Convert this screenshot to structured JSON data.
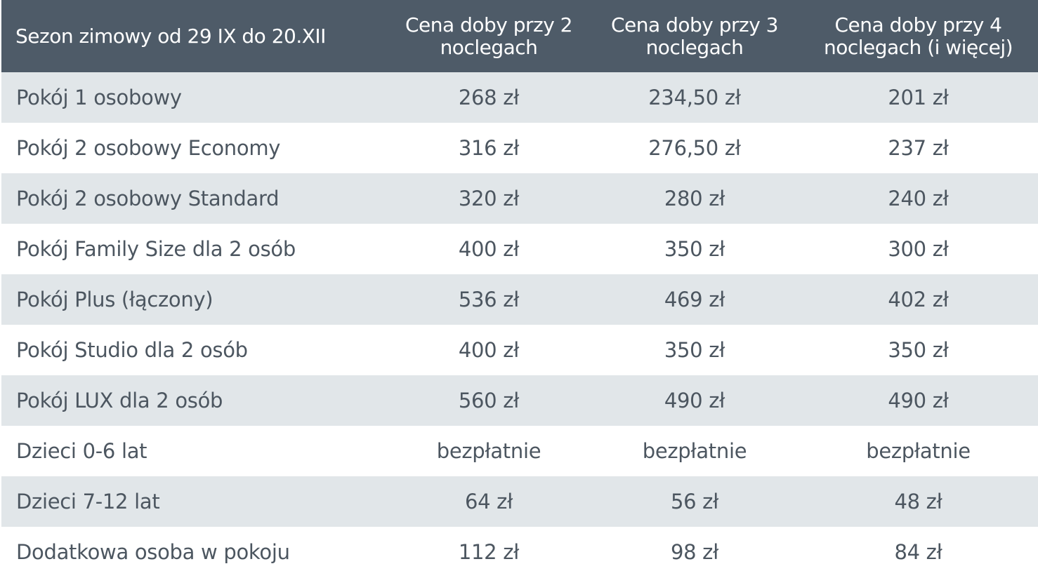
{
  "header": {
    "season": "Sezon zimowy od 29 IX do 20.XII",
    "col1": "Cena doby przy 2 noclegach",
    "col2": "Cena doby przy 3 noclegach",
    "col3": "Cena doby przy 4 noclegach (i więcej)"
  },
  "rows": [
    {
      "label": "Pokój 1 osobowy",
      "p2": "268  zł",
      "p3": "234,50 zł",
      "p4": "201 zł"
    },
    {
      "label": "Pokój 2 osobowy Economy",
      "p2": "316 zł",
      "p3": "276,50 zł",
      "p4": "237 zł"
    },
    {
      "label": "Pokój 2 osobowy Standard",
      "p2": "320 zł",
      "p3": "280 zł",
      "p4": "240 zł"
    },
    {
      "label": "Pokój Family Size dla 2 osób",
      "p2": "400 zł",
      "p3": "350 zł",
      "p4": "300 zł"
    },
    {
      "label": "Pokój Plus (łączony)",
      "p2": "536 zł",
      "p3": "469 zł",
      "p4": "402 zł"
    },
    {
      "label": "Pokój Studio dla 2 osób",
      "p2": "400 zł",
      "p3": "350 zł",
      "p4": "350 zł"
    },
    {
      "label": "Pokój LUX dla 2 osób",
      "p2": "560 zł",
      "p3": "490 zł",
      "p4": "490 zł"
    },
    {
      "label": "Dzieci 0-6  lat",
      "p2": "bezpłatnie",
      "p3": "bezpłatnie",
      "p4": "bezpłatnie"
    },
    {
      "label": "Dzieci 7-12 lat",
      "p2": "64 zł",
      "p3": "56 zł",
      "p4": "48 zł"
    },
    {
      "label": "Dodatkowa osoba w pokoju",
      "p2": "112 zł",
      "p3": "98 zł",
      "p4": "84 zł"
    }
  ],
  "colors": {
    "header_bg": "#4e5b68",
    "header_text": "#ffffff",
    "stripe_bg": "#e1e6e9",
    "body_text": "#4c5660"
  }
}
